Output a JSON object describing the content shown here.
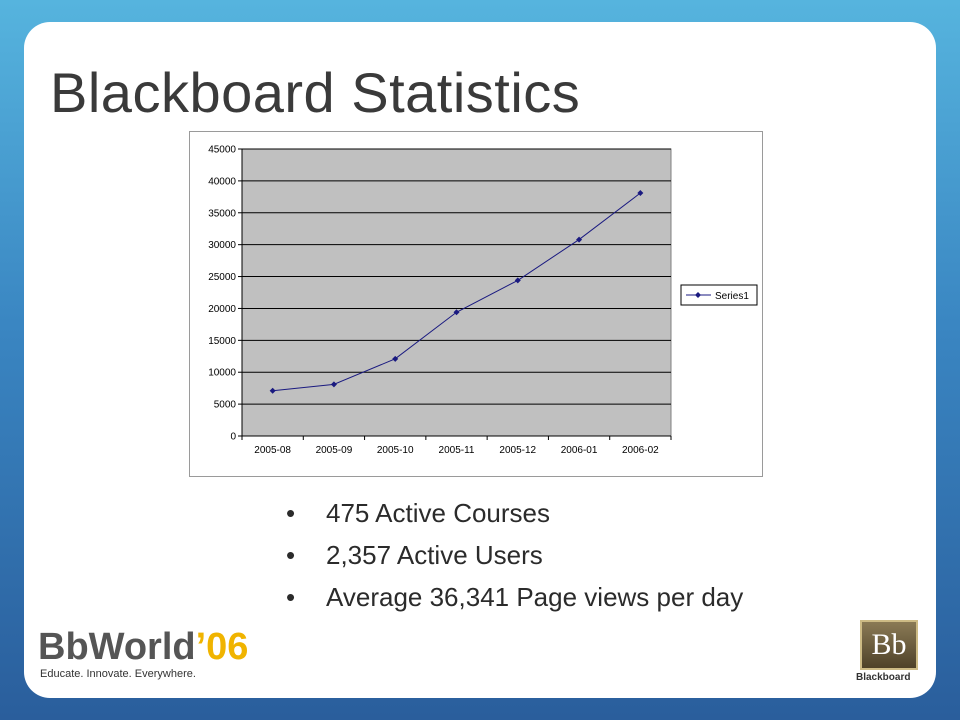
{
  "slide": {
    "title": "Blackboard Statistics"
  },
  "chart_data": {
    "type": "line",
    "title": "",
    "xlabel": "",
    "ylabel": "",
    "categories": [
      "2005-08",
      "2005-09",
      "2005-10",
      "2005-11",
      "2005-12",
      "2006-01",
      "2006-02"
    ],
    "series": [
      {
        "name": "Series1",
        "values": [
          7100,
          8100,
          12100,
          19400,
          24400,
          30800,
          38100
        ],
        "color": "#1a1a80"
      }
    ],
    "ylim": [
      0,
      45000
    ],
    "yticks": [
      0,
      5000,
      10000,
      15000,
      20000,
      25000,
      30000,
      35000,
      40000,
      45000
    ],
    "grid": true,
    "plot_background": "#c0c0c0",
    "legend_position": "right"
  },
  "bullets": [
    {
      "marker": "•",
      "text": "475 Active Courses"
    },
    {
      "marker": "•",
      "text": "2,357 Active Users"
    },
    {
      "marker": "•",
      "text": "Average 36,341 Page views per day"
    }
  ],
  "event_logo": {
    "word": "BbWorld",
    "year": "’06",
    "tagline": "Educate. Innovate. Everywhere."
  },
  "brand_logo": {
    "mark": "Bb",
    "name": "Blackboard"
  }
}
